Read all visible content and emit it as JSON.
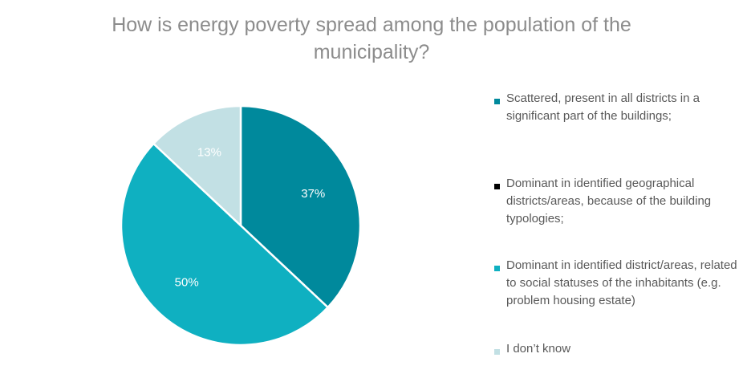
{
  "chart_data": {
    "type": "pie",
    "title_lines": [
      "How is energy poverty spread among the population of the",
      "municipality?"
    ],
    "slices": [
      {
        "label": "Scattered, present in all districts in a significant part of the buildings;",
        "value": 37,
        "display": "37%",
        "color": "#00899c",
        "label_color": "#ffffff"
      },
      {
        "label": "Dominant in identified geographical districts/areas, because of the building typologies;",
        "value": 0,
        "display": "",
        "color": "#000000",
        "label_color": "#ffffff"
      },
      {
        "label": "Dominant in identified district/areas, related to social statuses of the inhabitants (e.g. problem housing estate)",
        "value": 50,
        "display": "50%",
        "color": "#0fb0c1",
        "label_color": "#ffffff"
      },
      {
        "label": "I don’t know",
        "value": 13,
        "display": "13%",
        "color": "#c2e0e4",
        "label_color": "#ffffff"
      }
    ],
    "start_angle_deg": 0,
    "direction": "clockwise",
    "legend_position": "right"
  }
}
